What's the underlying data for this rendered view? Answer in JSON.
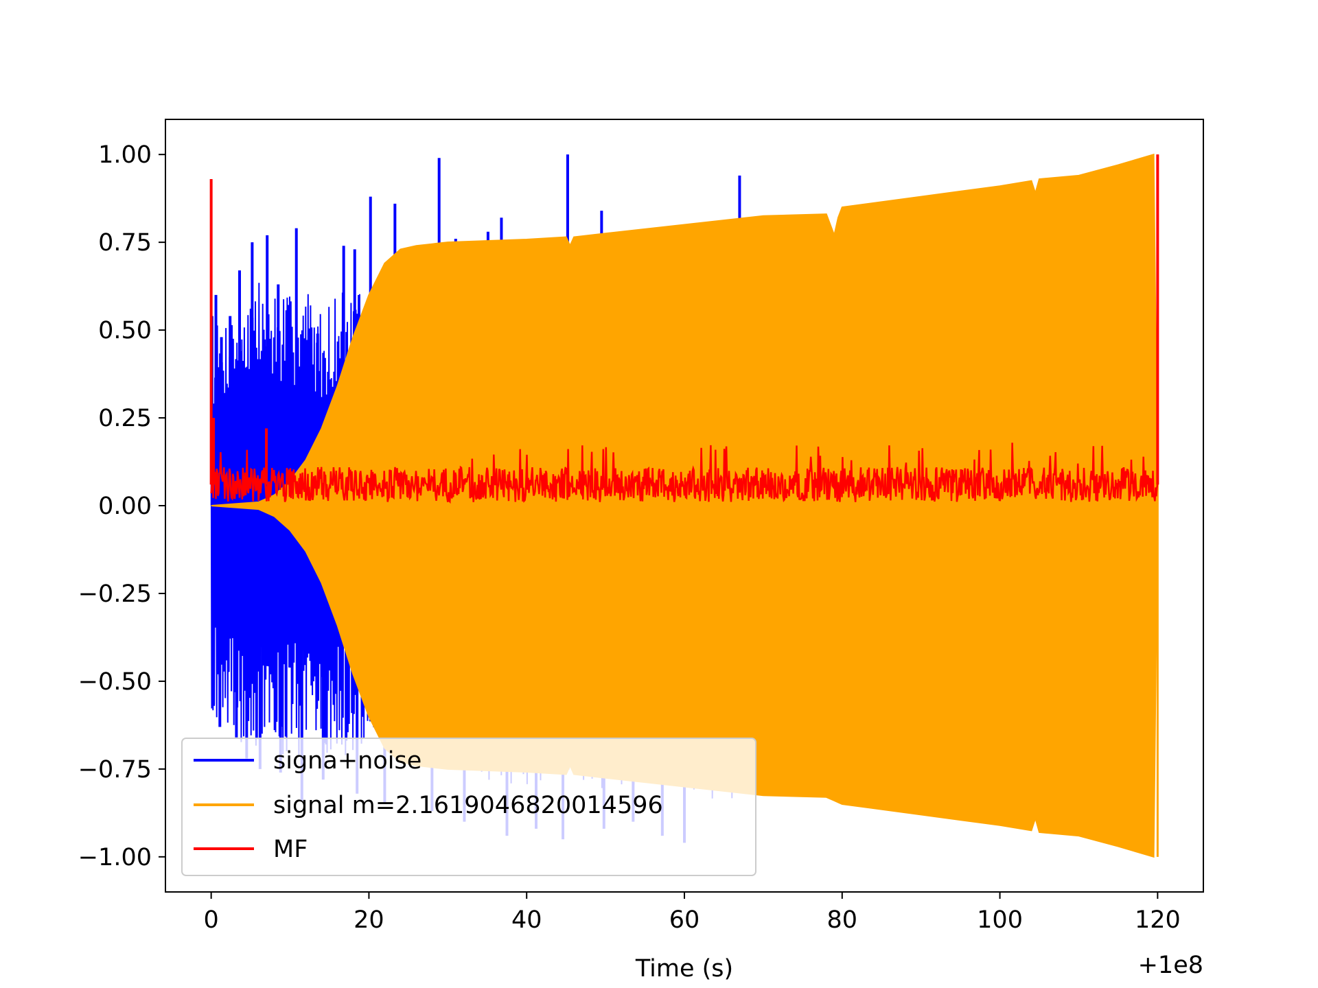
{
  "chart_data": {
    "type": "line",
    "title": "",
    "xlabel": "Time (s)",
    "ylabel": "",
    "x_offset_label": "+1e8",
    "xlim": [
      -5.8,
      125.8
    ],
    "ylim": [
      -1.1,
      1.1
    ],
    "xticks": [
      0,
      20,
      40,
      60,
      80,
      100,
      120
    ],
    "xtick_labels": [
      "0",
      "20",
      "40",
      "60",
      "80",
      "100",
      "120"
    ],
    "yticks": [
      1.0,
      0.75,
      0.5,
      0.25,
      0.0,
      -0.25,
      -0.5,
      -0.75,
      -1.0
    ],
    "ytick_labels": [
      "1.00",
      "0.75",
      "0.50",
      "0.25",
      "0.00",
      "−0.25",
      "−0.50",
      "−0.75",
      "−1.00"
    ],
    "grid": false,
    "legend_position": "lower-left",
    "series": [
      {
        "name": "signa+noise",
        "color": "#0000ff",
        "x_range": [
          0,
          120
        ],
        "envelope": {
          "x": [
            0,
            2,
            4,
            6,
            8,
            10,
            12,
            14,
            16,
            18,
            20,
            22,
            24,
            26,
            28,
            30,
            35,
            40,
            45,
            50,
            55,
            60,
            67,
            70
          ],
          "upper": [
            0.5,
            0.55,
            0.62,
            0.65,
            0.63,
            0.6,
            0.64,
            0.55,
            0.62,
            0.6,
            0.62,
            0.65,
            0.6,
            0.6,
            0.62,
            0.6,
            0.62,
            0.6,
            0.65,
            0.6,
            0.6,
            0.6,
            0.7,
            0.0
          ],
          "lower": [
            -0.6,
            -0.62,
            -0.68,
            -0.7,
            -0.72,
            -0.7,
            -0.72,
            -0.7,
            -0.72,
            -0.74,
            -0.7,
            -0.72,
            -0.74,
            -0.72,
            -0.75,
            -0.76,
            -0.78,
            -0.8,
            -0.78,
            -0.82,
            -0.8,
            -0.82,
            -0.85,
            0.0
          ]
        },
        "spikes": [
          {
            "x": 0.1,
            "y": 0.54
          },
          {
            "x": 0.6,
            "y": 0.6
          },
          {
            "x": 1.3,
            "y": 0.48
          },
          {
            "x": 2.4,
            "y": 0.54
          },
          {
            "x": 3.6,
            "y": 0.67
          },
          {
            "x": 5.2,
            "y": 0.75
          },
          {
            "x": 7.1,
            "y": 0.77
          },
          {
            "x": 8.5,
            "y": 0.63
          },
          {
            "x": 10.8,
            "y": 0.79
          },
          {
            "x": 13.5,
            "y": 0.49
          },
          {
            "x": 16.8,
            "y": 0.74
          },
          {
            "x": 18.2,
            "y": 0.73
          },
          {
            "x": 20.2,
            "y": 0.88
          },
          {
            "x": 23.3,
            "y": 0.86
          },
          {
            "x": 28.9,
            "y": 0.99
          },
          {
            "x": 31.0,
            "y": 0.76
          },
          {
            "x": 35.1,
            "y": 0.78
          },
          {
            "x": 36.8,
            "y": 0.82
          },
          {
            "x": 45.2,
            "y": 1.0
          },
          {
            "x": 49.5,
            "y": 0.84
          },
          {
            "x": 67.0,
            "y": 0.94
          },
          {
            "x": 0.3,
            "y": -0.57
          },
          {
            "x": 1.1,
            "y": -0.63
          },
          {
            "x": 3.2,
            "y": -0.66
          },
          {
            "x": 4.5,
            "y": -0.72
          },
          {
            "x": 6.2,
            "y": -0.75
          },
          {
            "x": 8.8,
            "y": -0.76
          },
          {
            "x": 11.5,
            "y": -0.84
          },
          {
            "x": 14.2,
            "y": -0.78
          },
          {
            "x": 18.5,
            "y": -0.82
          },
          {
            "x": 22.0,
            "y": -0.85
          },
          {
            "x": 28.0,
            "y": -0.87
          },
          {
            "x": 32.1,
            "y": -0.9
          },
          {
            "x": 37.5,
            "y": -0.94
          },
          {
            "x": 41.2,
            "y": -0.92
          },
          {
            "x": 44.6,
            "y": -0.95
          },
          {
            "x": 49.8,
            "y": -0.92
          },
          {
            "x": 53.5,
            "y": -0.9
          },
          {
            "x": 57.2,
            "y": -0.94
          },
          {
            "x": 60.0,
            "y": -0.96
          }
        ]
      },
      {
        "name": "signal m=2.1619046820014596",
        "color": "#ffa500",
        "envelope": {
          "x": [
            0,
            6,
            8,
            10,
            12,
            14,
            16,
            18,
            20,
            22,
            24,
            26,
            28,
            30,
            40,
            45,
            45.5,
            46,
            50,
            60,
            70,
            78,
            79,
            79.5,
            80,
            90,
            100,
            104,
            104.5,
            105,
            110,
            115,
            119.5,
            120
          ],
          "upper": [
            0.0,
            0.01,
            0.03,
            0.07,
            0.13,
            0.22,
            0.34,
            0.48,
            0.6,
            0.69,
            0.73,
            0.74,
            0.745,
            0.75,
            0.758,
            0.765,
            0.74,
            0.765,
            0.775,
            0.8,
            0.825,
            0.83,
            0.77,
            0.82,
            0.85,
            0.88,
            0.91,
            0.925,
            0.89,
            0.93,
            0.94,
            0.97,
            1.0,
            0.0
          ],
          "lower": [
            0.0,
            -0.01,
            -0.03,
            -0.07,
            -0.13,
            -0.22,
            -0.34,
            -0.48,
            -0.6,
            -0.69,
            -0.73,
            -0.74,
            -0.745,
            -0.75,
            -0.758,
            -0.765,
            -0.74,
            -0.765,
            -0.775,
            -0.8,
            -0.825,
            -0.83,
            -0.84,
            -0.845,
            -0.85,
            -0.88,
            -0.91,
            -0.925,
            -0.89,
            -0.93,
            -0.94,
            -0.97,
            -1.0,
            0.0
          ]
        }
      },
      {
        "name": "MF",
        "color": "#ff0000",
        "x_range": [
          0,
          120
        ],
        "baseline": 0.06,
        "noise_amplitude": 0.05,
        "peaks": [
          {
            "x": 0.0,
            "y": 0.93
          },
          {
            "x": 0.3,
            "y": 0.25
          },
          {
            "x": 7.0,
            "y": 0.22
          },
          {
            "x": 120.0,
            "y": 1.0
          }
        ]
      }
    ]
  }
}
